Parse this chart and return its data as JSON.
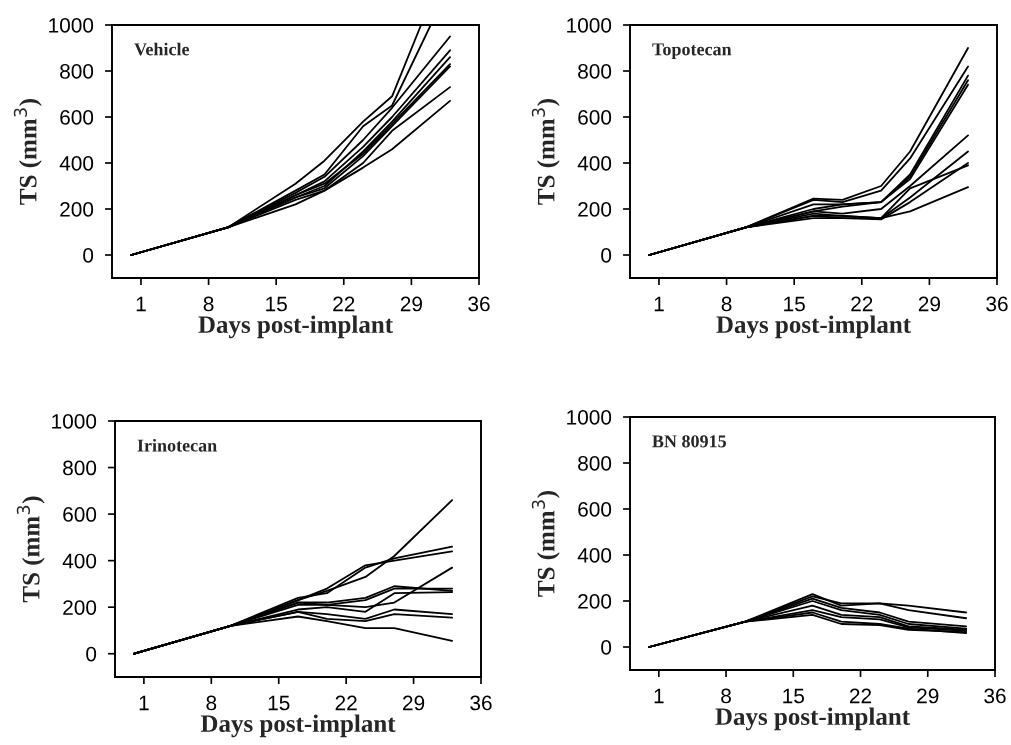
{
  "chart_data": [
    {
      "type": "line",
      "title": "Vehicle",
      "xlabel": "Days post-implant",
      "ylabel": "TS (mm$^{3}$)",
      "xlim": [
        -2,
        36
      ],
      "ylim": [
        -100,
        1000
      ],
      "xticks": [
        1,
        8,
        15,
        22,
        29,
        36
      ],
      "yticks": [
        0,
        200,
        400,
        600,
        800,
        1000
      ],
      "grid": false,
      "x": [
        0,
        10,
        17,
        20,
        24,
        27,
        33
      ],
      "series": [
        {
          "color": "#000000",
          "x": [
            0,
            10,
            17,
            20,
            24,
            27,
            30
          ],
          "values": [
            0,
            120,
            310,
            410,
            580,
            690,
            1000
          ]
        },
        {
          "color": "#000000",
          "x": [
            0,
            10,
            17,
            20,
            24,
            27,
            31
          ],
          "values": [
            0,
            120,
            280,
            350,
            560,
            650,
            1000
          ]
        },
        {
          "color": "#000000",
          "values": [
            0,
            120,
            270,
            340,
            500,
            640,
            950
          ]
        },
        {
          "color": "#000000",
          "values": [
            0,
            120,
            260,
            320,
            470,
            600,
            890
          ]
        },
        {
          "color": "#000000",
          "values": [
            0,
            120,
            250,
            300,
            450,
            580,
            860
          ]
        },
        {
          "color": "#000000",
          "values": [
            0,
            120,
            260,
            310,
            440,
            570,
            830
          ]
        },
        {
          "color": "#000000",
          "values": [
            0,
            120,
            250,
            290,
            430,
            560,
            820
          ]
        },
        {
          "color": "#000000",
          "values": [
            0,
            120,
            240,
            280,
            400,
            540,
            730
          ]
        },
        {
          "color": "#000000",
          "values": [
            0,
            120,
            220,
            280,
            380,
            460,
            670
          ]
        }
      ]
    },
    {
      "type": "line",
      "title": "Topotecan",
      "xlabel": "Days post-implant",
      "ylabel": "TS (mm$^{3}$)",
      "xlim": [
        -2,
        36
      ],
      "ylim": [
        -100,
        1000
      ],
      "xticks": [
        1,
        8,
        15,
        22,
        29,
        36
      ],
      "yticks": [
        0,
        200,
        400,
        600,
        800,
        1000
      ],
      "grid": false,
      "x": [
        0,
        10,
        17,
        20,
        24,
        27,
        33
      ],
      "series": [
        {
          "color": "#000000",
          "values": [
            0,
            120,
            245,
            240,
            300,
            450,
            900
          ]
        },
        {
          "color": "#000000",
          "values": [
            0,
            120,
            240,
            230,
            280,
            420,
            820
          ]
        },
        {
          "color": "#000000",
          "values": [
            0,
            120,
            220,
            220,
            230,
            350,
            780
          ]
        },
        {
          "color": "#000000",
          "values": [
            0,
            120,
            200,
            220,
            230,
            340,
            760
          ]
        },
        {
          "color": "#000000",
          "values": [
            0,
            120,
            190,
            210,
            230,
            330,
            740
          ]
        },
        {
          "color": "#000000",
          "values": [
            0,
            120,
            190,
            180,
            200,
            300,
            520
          ]
        },
        {
          "color": "#000000",
          "values": [
            0,
            120,
            180,
            170,
            160,
            250,
            450
          ]
        },
        {
          "color": "#000000",
          "values": [
            0,
            120,
            170,
            170,
            160,
            290,
            390
          ]
        },
        {
          "color": "#000000",
          "values": [
            0,
            120,
            170,
            160,
            155,
            230,
            400
          ]
        },
        {
          "color": "#000000",
          "values": [
            0,
            120,
            160,
            160,
            160,
            190,
            295
          ]
        }
      ]
    },
    {
      "type": "line",
      "title": "Irinotecan",
      "xlabel": "Days post-implant",
      "ylabel": "TS (mm$^{3}$)",
      "xlim": [
        -2,
        36
      ],
      "ylim": [
        -100,
        1000
      ],
      "xticks": [
        1,
        8,
        15,
        22,
        29,
        36
      ],
      "yticks": [
        0,
        200,
        400,
        600,
        800,
        1000
      ],
      "grid": false,
      "x": [
        0,
        10,
        17,
        20,
        24,
        27,
        33
      ],
      "series": [
        {
          "color": "#000000",
          "values": [
            0,
            120,
            230,
            270,
            330,
            420,
            660
          ]
        },
        {
          "color": "#000000",
          "values": [
            0,
            120,
            240,
            260,
            370,
            410,
            460
          ]
        },
        {
          "color": "#000000",
          "values": [
            0,
            120,
            230,
            280,
            380,
            400,
            440
          ]
        },
        {
          "color": "#000000",
          "values": [
            0,
            120,
            220,
            210,
            200,
            220,
            370
          ]
        },
        {
          "color": "#000000",
          "values": [
            0,
            120,
            220,
            220,
            240,
            290,
            270
          ]
        },
        {
          "color": "#000000",
          "values": [
            0,
            120,
            210,
            210,
            230,
            280,
            280
          ]
        },
        {
          "color": "#000000",
          "values": [
            0,
            120,
            190,
            200,
            180,
            260,
            265
          ]
        },
        {
          "color": "#000000",
          "values": [
            0,
            120,
            180,
            170,
            150,
            190,
            170
          ]
        },
        {
          "color": "#000000",
          "values": [
            0,
            120,
            180,
            150,
            140,
            170,
            155
          ]
        },
        {
          "color": "#000000",
          "values": [
            0,
            120,
            160,
            140,
            110,
            110,
            55
          ]
        }
      ]
    },
    {
      "type": "line",
      "title": "BN 80915",
      "xlabel": "Days post-implant",
      "ylabel": "TS (mm$^{3}$)",
      "xlim": [
        -2,
        36
      ],
      "ylim": [
        -100,
        1000
      ],
      "xticks": [
        1,
        8,
        15,
        22,
        29,
        36
      ],
      "yticks": [
        0,
        200,
        400,
        600,
        800,
        1000
      ],
      "grid": false,
      "x": [
        0,
        10,
        17,
        20,
        24,
        27,
        33
      ],
      "series": [
        {
          "color": "#000000",
          "values": [
            0,
            110,
            230,
            180,
            190,
            180,
            150
          ]
        },
        {
          "color": "#000000",
          "values": [
            0,
            110,
            220,
            190,
            190,
            160,
            125
          ]
        },
        {
          "color": "#000000",
          "values": [
            0,
            110,
            210,
            170,
            150,
            110,
            90
          ]
        },
        {
          "color": "#000000",
          "values": [
            0,
            110,
            200,
            160,
            140,
            100,
            80
          ]
        },
        {
          "color": "#000000",
          "values": [
            0,
            110,
            180,
            140,
            130,
            90,
            75
          ]
        },
        {
          "color": "#000000",
          "values": [
            0,
            110,
            160,
            130,
            120,
            85,
            70
          ]
        },
        {
          "color": "#000000",
          "values": [
            0,
            110,
            150,
            110,
            100,
            80,
            60
          ]
        },
        {
          "color": "#000000",
          "values": [
            0,
            110,
            140,
            100,
            95,
            75,
            65
          ]
        }
      ]
    }
  ]
}
